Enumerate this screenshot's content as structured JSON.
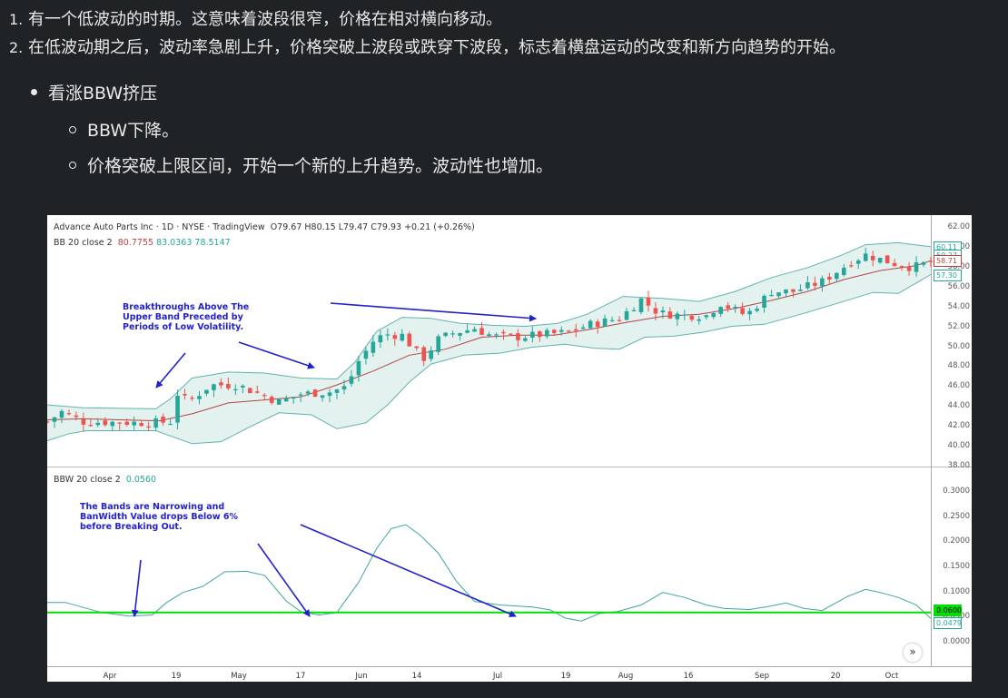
{
  "text": {
    "list": [
      {
        "num": "1.",
        "text": "有一个低波动的时期。这意味着波段很窄，价格在相对横向移动。"
      },
      {
        "num": "2.",
        "text": "在低波动期之后，波动率急剧上升，价格突破上波段或跌穿下波段，标志着横盘运动的改变和新方向趋势的开始。"
      }
    ],
    "bullet": "看涨BBW挤压",
    "sub": [
      "BBW下降。",
      "价格突破上限区间，开始一个新的上升趋势。波动性也增加。"
    ]
  },
  "chart": {
    "header": {
      "title": "Advance Auto Parts Inc · 1D · NYSE · TradingView",
      "ohlc": "O79.67 H80.15 L79.47 C79.93 +0.21 (+0.26%)",
      "bb_label": "BB 20 close 2",
      "bb_vals": [
        "80.7755",
        "83.0363",
        "78.5147"
      ],
      "bbw_label": "BBW 20 close 2",
      "bbw_val": "0.0560"
    },
    "annotations": {
      "a1": [
        "Breakthroughs Above The",
        "Upper Band Preceded by",
        "Periods of Low Volatility."
      ],
      "a2": [
        "The Bands are Narrowing and",
        "BanWidth Value drops Below 6%",
        "before Breaking Out."
      ]
    },
    "price_axis": [
      "62.00",
      "60.00",
      "58.00",
      "56.00",
      "54.00",
      "52.00",
      "50.00",
      "48.00",
      "46.00",
      "44.00",
      "42.00",
      "40.00",
      "38.00"
    ],
    "price_tags": [
      "60.11",
      "59.27",
      "58.71",
      "57.30"
    ],
    "bbw_axis": [
      "0.3000",
      "0.2500",
      "0.2000",
      "0.1500",
      "0.1000",
      "0.0500",
      "0.0000"
    ],
    "bbw_tags": [
      "0.0600",
      "0.0479"
    ],
    "x_labels": [
      "Apr",
      "19",
      "May",
      "17",
      "Jun",
      "14",
      "Jul",
      "19",
      "Aug",
      "16",
      "Sep",
      "20",
      "Oct"
    ],
    "colors": {
      "up": "#26a69a",
      "down": "#ef5350",
      "band": "#5fb3ad",
      "threshold": "#00e000",
      "arrow": "#2222cc"
    }
  },
  "chart_data": [
    {
      "type": "candlestick",
      "title": "Advance Auto Parts Inc · 1D · NYSE · TradingView",
      "x_ticks": [
        "Apr",
        "19",
        "May",
        "17",
        "Jun",
        "14",
        "Jul",
        "19",
        "Aug",
        "16",
        "Sep",
        "20",
        "Oct"
      ],
      "ylim": [
        38,
        62
      ],
      "close_path": [
        [
          0,
          42.5
        ],
        [
          8,
          43.5
        ],
        [
          20,
          42.5
        ],
        [
          55,
          42.4
        ],
        [
          68,
          42.5
        ],
        [
          70,
          45.6
        ],
        [
          78,
          44.5
        ],
        [
          90,
          46.2
        ],
        [
          105,
          46.2
        ],
        [
          128,
          44.5
        ],
        [
          140,
          45.3
        ],
        [
          156,
          45.5
        ],
        [
          165,
          46.0
        ],
        [
          172,
          48.6
        ],
        [
          180,
          50.6
        ],
        [
          186,
          51.3
        ],
        [
          196,
          51.2
        ],
        [
          204,
          49.5
        ],
        [
          208,
          48.9
        ],
        [
          216,
          50.8
        ],
        [
          224,
          51.4
        ],
        [
          236,
          51.9
        ],
        [
          246,
          51.1
        ],
        [
          258,
          51.0
        ],
        [
          270,
          51.2
        ],
        [
          288,
          51.5
        ],
        [
          300,
          52.3
        ],
        [
          316,
          52.9
        ],
        [
          328,
          54.8
        ],
        [
          338,
          53.4
        ],
        [
          352,
          53.2
        ],
        [
          364,
          53.2
        ],
        [
          372,
          54.4
        ],
        [
          386,
          53.2
        ],
        [
          400,
          55.6
        ],
        [
          412,
          55.6
        ],
        [
          428,
          56.6
        ],
        [
          444,
          58.6
        ],
        [
          452,
          59.3
        ],
        [
          466,
          58.5
        ],
        [
          478,
          58.0
        ],
        [
          488,
          58.6
        ]
      ],
      "bb_mid_path": [
        [
          0,
          42.7
        ],
        [
          20,
          42.8
        ],
        [
          40,
          42.7
        ],
        [
          62,
          42.6
        ],
        [
          80,
          43.3
        ],
        [
          100,
          44.4
        ],
        [
          120,
          44.7
        ],
        [
          140,
          45.0
        ],
        [
          160,
          46.2
        ],
        [
          180,
          47.6
        ],
        [
          200,
          49.2
        ],
        [
          220,
          49.8
        ],
        [
          240,
          51.0
        ],
        [
          260,
          51.2
        ],
        [
          280,
          51.2
        ],
        [
          300,
          51.8
        ],
        [
          320,
          52.5
        ],
        [
          340,
          53.1
        ],
        [
          360,
          53.3
        ],
        [
          380,
          53.9
        ],
        [
          400,
          54.7
        ],
        [
          420,
          55.6
        ],
        [
          440,
          56.8
        ],
        [
          460,
          57.7
        ],
        [
          480,
          58.2
        ],
        [
          488,
          58.7
        ]
      ],
      "bb_upper_path": [
        [
          0,
          44.2
        ],
        [
          20,
          43.9
        ],
        [
          60,
          43.8
        ],
        [
          68,
          44.8
        ],
        [
          80,
          46.9
        ],
        [
          100,
          47.5
        ],
        [
          120,
          47.4
        ],
        [
          140,
          46.9
        ],
        [
          160,
          46.8
        ],
        [
          170,
          48.5
        ],
        [
          182,
          51.6
        ],
        [
          196,
          53.0
        ],
        [
          212,
          52.9
        ],
        [
          228,
          52.4
        ],
        [
          246,
          52.2
        ],
        [
          264,
          52.1
        ],
        [
          282,
          52.4
        ],
        [
          298,
          53.3
        ],
        [
          318,
          55.1
        ],
        [
          340,
          54.9
        ],
        [
          360,
          54.6
        ],
        [
          380,
          55.6
        ],
        [
          400,
          57.0
        ],
        [
          420,
          58.0
        ],
        [
          438,
          59.2
        ],
        [
          452,
          60.3
        ],
        [
          470,
          60.5
        ],
        [
          488,
          60.1
        ]
      ],
      "bb_lower_path": [
        [
          0,
          40.6
        ],
        [
          12,
          41.3
        ],
        [
          22,
          41.6
        ],
        [
          60,
          41.6
        ],
        [
          80,
          40.3
        ],
        [
          96,
          40.5
        ],
        [
          112,
          42.0
        ],
        [
          128,
          43.4
        ],
        [
          146,
          43.2
        ],
        [
          160,
          41.8
        ],
        [
          176,
          42.4
        ],
        [
          188,
          44.2
        ],
        [
          200,
          46.5
        ],
        [
          212,
          48.3
        ],
        [
          230,
          49.2
        ],
        [
          250,
          49.4
        ],
        [
          268,
          50.0
        ],
        [
          286,
          50.3
        ],
        [
          302,
          49.9
        ],
        [
          316,
          49.8
        ],
        [
          330,
          51.0
        ],
        [
          346,
          51.1
        ],
        [
          362,
          51.5
        ],
        [
          378,
          52.1
        ],
        [
          396,
          52.3
        ],
        [
          418,
          53.4
        ],
        [
          438,
          54.5
        ],
        [
          456,
          55.5
        ],
        [
          470,
          55.4
        ],
        [
          488,
          57.3
        ]
      ]
    },
    {
      "type": "line",
      "title": "BBW 20 close 2",
      "ylim": [
        0,
        0.3
      ],
      "threshold": 0.06,
      "path": [
        [
          0,
          0.08
        ],
        [
          10,
          0.08
        ],
        [
          30,
          0.06
        ],
        [
          45,
          0.053
        ],
        [
          58,
          0.055
        ],
        [
          66,
          0.08
        ],
        [
          75,
          0.1
        ],
        [
          86,
          0.112
        ],
        [
          98,
          0.141
        ],
        [
          110,
          0.142
        ],
        [
          120,
          0.134
        ],
        [
          132,
          0.083
        ],
        [
          140,
          0.062
        ],
        [
          150,
          0.055
        ],
        [
          160,
          0.06
        ],
        [
          172,
          0.12
        ],
        [
          182,
          0.188
        ],
        [
          190,
          0.227
        ],
        [
          198,
          0.235
        ],
        [
          206,
          0.214
        ],
        [
          216,
          0.178
        ],
        [
          226,
          0.122
        ],
        [
          236,
          0.082
        ],
        [
          250,
          0.075
        ],
        [
          268,
          0.071
        ],
        [
          278,
          0.065
        ],
        [
          286,
          0.049
        ],
        [
          295,
          0.043
        ],
        [
          305,
          0.058
        ],
        [
          315,
          0.062
        ],
        [
          328,
          0.075
        ],
        [
          340,
          0.1
        ],
        [
          352,
          0.09
        ],
        [
          364,
          0.075
        ],
        [
          374,
          0.068
        ],
        [
          388,
          0.066
        ],
        [
          398,
          0.072
        ],
        [
          408,
          0.079
        ],
        [
          418,
          0.068
        ],
        [
          428,
          0.064
        ],
        [
          442,
          0.092
        ],
        [
          452,
          0.106
        ],
        [
          460,
          0.1
        ],
        [
          470,
          0.09
        ],
        [
          480,
          0.075
        ],
        [
          488,
          0.048
        ]
      ]
    }
  ]
}
